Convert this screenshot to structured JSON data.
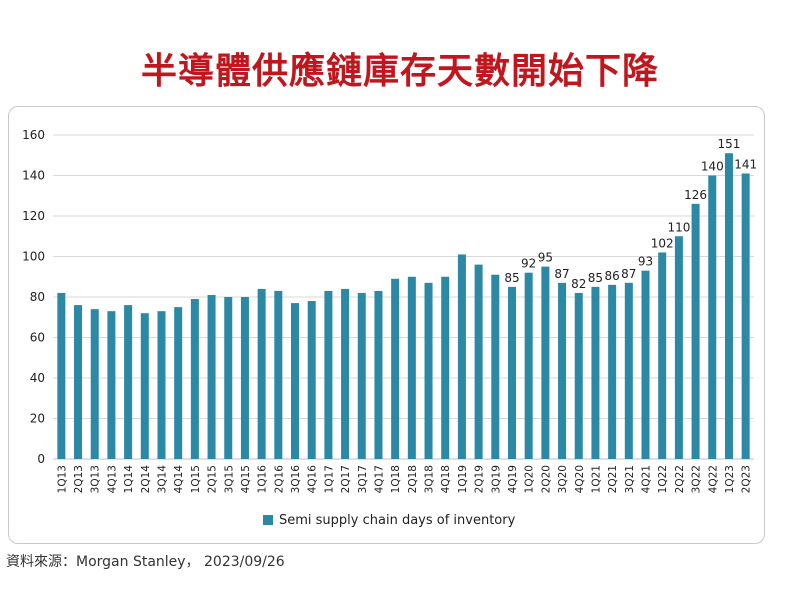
{
  "title": "半導體供應鏈庫存天數開始下降",
  "source": "資料來源：Morgan Stanley， 2023/09/26",
  "colors": {
    "bar": "#2c89a6",
    "title": "#c0171e",
    "grid": "#d9d9d9",
    "axis_text": "#222222"
  },
  "chart_data": {
    "type": "bar",
    "title": "",
    "xlabel": "",
    "ylabel": "",
    "ylim": [
      0,
      160
    ],
    "yticks": [
      0,
      20,
      40,
      60,
      80,
      100,
      120,
      140,
      160
    ],
    "grid": true,
    "legend_position": "bottom",
    "categories": [
      "1Q13",
      "2Q13",
      "3Q13",
      "4Q13",
      "1Q14",
      "2Q14",
      "3Q14",
      "4Q14",
      "1Q15",
      "2Q15",
      "3Q15",
      "4Q15",
      "1Q16",
      "2Q16",
      "3Q16",
      "4Q16",
      "1Q17",
      "2Q17",
      "3Q17",
      "4Q17",
      "1Q18",
      "2Q18",
      "3Q18",
      "4Q18",
      "1Q19",
      "2Q19",
      "3Q19",
      "4Q19",
      "1Q20",
      "2Q20",
      "3Q20",
      "4Q20",
      "1Q21",
      "2Q21",
      "3Q21",
      "4Q21",
      "1Q22",
      "2Q22",
      "3Q22",
      "4Q22",
      "1Q23",
      "2Q23"
    ],
    "series": [
      {
        "name": "Semi supply chain days of inventory",
        "values": [
          82,
          76,
          74,
          73,
          76,
          72,
          73,
          75,
          79,
          81,
          80,
          80,
          84,
          83,
          77,
          78,
          83,
          84,
          82,
          83,
          89,
          90,
          87,
          90,
          101,
          96,
          91,
          85,
          92,
          95,
          87,
          82,
          85,
          86,
          87,
          93,
          102,
          110,
          126,
          140,
          151,
          141
        ]
      }
    ],
    "data_labels": [
      {
        "index": 27,
        "text": "85"
      },
      {
        "index": 28,
        "text": "92"
      },
      {
        "index": 29,
        "text": "95"
      },
      {
        "index": 30,
        "text": "87"
      },
      {
        "index": 31,
        "text": "82"
      },
      {
        "index": 32,
        "text": "85"
      },
      {
        "index": 33,
        "text": "86"
      },
      {
        "index": 34,
        "text": "87"
      },
      {
        "index": 35,
        "text": "93"
      },
      {
        "index": 36,
        "text": "102"
      },
      {
        "index": 37,
        "text": "110"
      },
      {
        "index": 38,
        "text": "126"
      },
      {
        "index": 39,
        "text": "140"
      },
      {
        "index": 40,
        "text": "151"
      },
      {
        "index": 41,
        "text": "141"
      }
    ]
  }
}
